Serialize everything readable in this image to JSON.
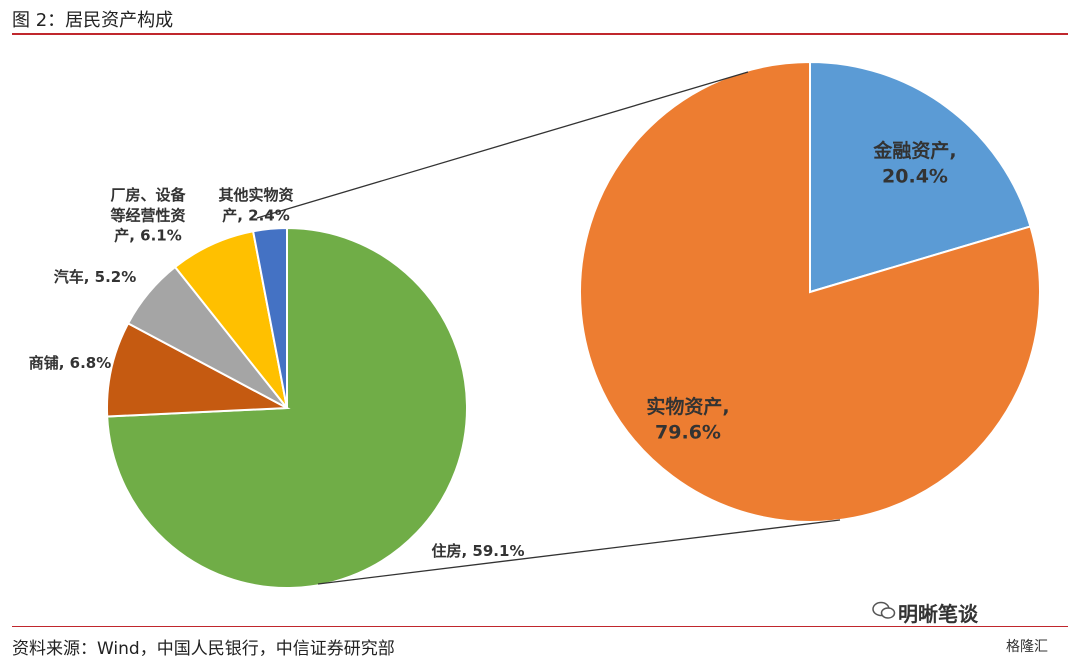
{
  "header": {
    "title": "图 2：居民资产构成"
  },
  "footer": {
    "source": "资料来源：Wind，中国人民银行，中信证券研究部",
    "brand": "明晰笔谈",
    "watermark": "格隆汇"
  },
  "chart_data": [
    {
      "type": "pie",
      "categories": [
        "住房",
        "商铺",
        "汽车",
        "厂房、设备等经营性资产",
        "其他实物资产"
      ],
      "values": [
        59.1,
        6.8,
        5.2,
        6.1,
        2.4
      ],
      "labels": [
        [
          "住房, 59.1%"
        ],
        [
          "商铺, 6.8%"
        ],
        [
          "汽车, 5.2%"
        ],
        [
          "厂房、设备",
          "等经营性资",
          "产, 6.1%"
        ],
        [
          "其他实物资",
          "产, 2.4%"
        ]
      ],
      "colors": [
        "#70ad47",
        "#c55a11",
        "#a5a5a5",
        "#ffc000",
        "#4472c4"
      ]
    },
    {
      "type": "pie",
      "categories": [
        "金融资产",
        "实物资产"
      ],
      "values": [
        20.4,
        79.6
      ],
      "labels": [
        [
          "金融资产,",
          "20.4%"
        ],
        [
          "实物资产,",
          "79.6%"
        ]
      ],
      "colors": [
        "#5b9bd5",
        "#ed7d31"
      ]
    }
  ]
}
